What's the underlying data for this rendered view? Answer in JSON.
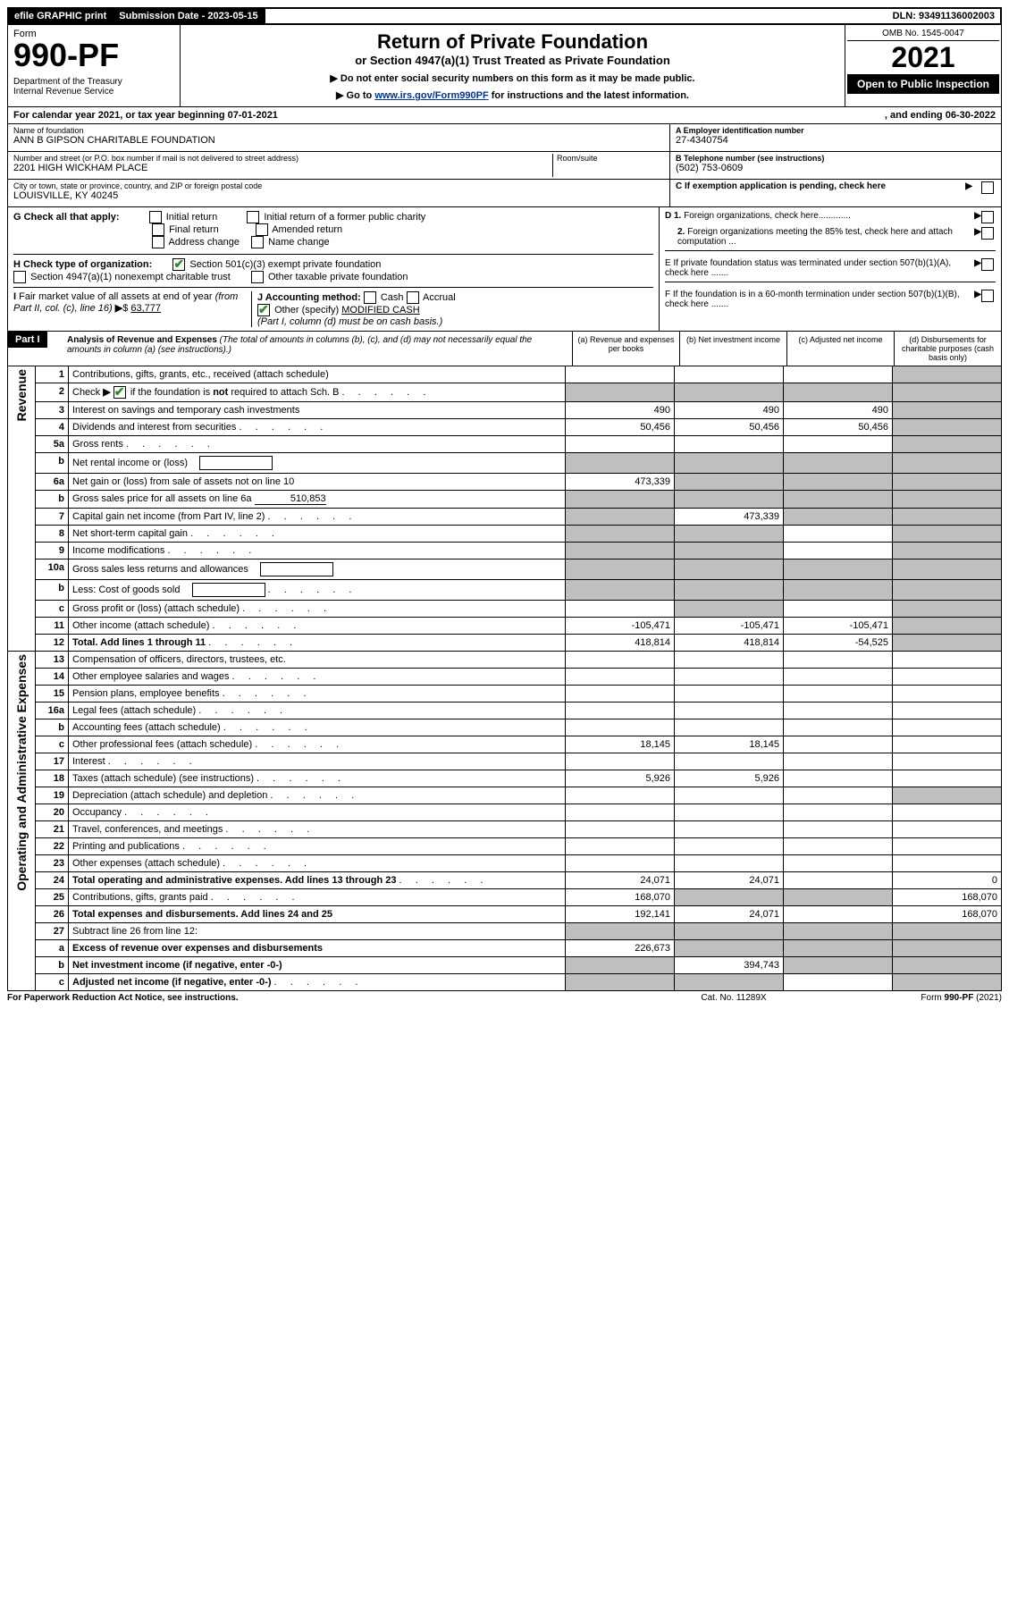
{
  "topbar": {
    "efile": "efile GRAPHIC print",
    "submission_label": "Submission Date - ",
    "submission_date": "2023-05-15",
    "dln_label": "DLN: ",
    "dln": "93491136002003"
  },
  "header": {
    "form_label": "Form",
    "form_no": "990-PF",
    "dept": "Department of the Treasury\nInternal Revenue Service",
    "title": "Return of Private Foundation",
    "subtitle": "or Section 4947(a)(1) Trust Treated as Private Foundation",
    "instr1": "▶ Do not enter social security numbers on this form as it may be made public.",
    "instr2_pre": "▶ Go to ",
    "instr2_link": "www.irs.gov/Form990PF",
    "instr2_post": " for instructions and the latest information.",
    "omb": "OMB No. 1545-0047",
    "year": "2021",
    "inspect": "Open to Public Inspection"
  },
  "calendar": {
    "text": "For calendar year 2021, or tax year beginning ",
    "begin": "07-01-2021",
    "mid": ", and ending ",
    "end": "06-30-2022"
  },
  "info": {
    "name_label": "Name of foundation",
    "name": "ANN B GIPSON CHARITABLE FOUNDATION",
    "addr_label": "Number and street (or P.O. box number if mail is not delivered to street address)",
    "addr": "2201 HIGH WICKHAM PLACE",
    "room_label": "Room/suite",
    "city_label": "City or town, state or province, country, and ZIP or foreign postal code",
    "city": "LOUISVILLE, KY  40245",
    "ein_label": "A Employer identification number",
    "ein": "27-4340754",
    "phone_label": "B Telephone number (see instructions)",
    "phone": "(502) 753-0609",
    "c_label": "C If exemption application is pending, check here",
    "d1": "D 1. Foreign organizations, check here.............",
    "d2": "2. Foreign organizations meeting the 85% test, check here and attach computation ...",
    "e": "E  If private foundation status was terminated under section 507(b)(1)(A), check here .......",
    "f": "F  If the foundation is in a 60-month termination under section 507(b)(1)(B), check here ......."
  },
  "g": {
    "label": "G Check all that apply:",
    "opts": [
      "Initial return",
      "Final return",
      "Address change",
      "Initial return of a former public charity",
      "Amended return",
      "Name change"
    ]
  },
  "h": {
    "label": "H Check type of organization:",
    "opt1": "Section 501(c)(3) exempt private foundation",
    "opt2": "Section 4947(a)(1) nonexempt charitable trust",
    "opt3": "Other taxable private foundation"
  },
  "i": {
    "label": "I Fair market value of all assets at end of year (from Part II, col. (c), line 16) ▶$",
    "value": "63,777"
  },
  "j": {
    "label": "J Accounting method:",
    "cash": "Cash",
    "accrual": "Accrual",
    "other": "Other (specify)",
    "other_val": "MODIFIED CASH",
    "note": "(Part I, column (d) must be on cash basis.)"
  },
  "part1": {
    "label": "Part I",
    "title": "Analysis of Revenue and Expenses",
    "sub": "(The total of amounts in columns (b), (c), and (d) may not necessarily equal the amounts in column (a) (see instructions).)",
    "cols": {
      "a": "(a) Revenue and expenses per books",
      "b": "(b) Net investment income",
      "c": "(c) Adjusted net income",
      "d": "(d) Disbursements for charitable purposes (cash basis only)"
    }
  },
  "sides": {
    "revenue": "Revenue",
    "expenses": "Operating and Administrative Expenses"
  },
  "rows": [
    {
      "n": "1",
      "desc": "Contributions, gifts, grants, etc., received (attach schedule)",
      "a": "",
      "b": "",
      "c": "",
      "d": "",
      "greyD": true
    },
    {
      "n": "2",
      "desc": "Check ▶ ☑ if the foundation is not required to attach Sch. B",
      "dots": true,
      "a": "",
      "b": "",
      "c": "",
      "d": "",
      "greyA": true,
      "greyB": true,
      "greyC": true,
      "greyD": true,
      "checked": true,
      "bold_not": true
    },
    {
      "n": "3",
      "desc": "Interest on savings and temporary cash investments",
      "a": "490",
      "b": "490",
      "c": "490",
      "d": "",
      "greyD": true
    },
    {
      "n": "4",
      "desc": "Dividends and interest from securities",
      "dots": true,
      "a": "50,456",
      "b": "50,456",
      "c": "50,456",
      "d": "",
      "greyD": true
    },
    {
      "n": "5a",
      "desc": "Gross rents",
      "dots": true,
      "a": "",
      "b": "",
      "c": "",
      "d": "",
      "greyD": true
    },
    {
      "n": "b",
      "desc": "Net rental income or (loss)",
      "inline_box": true,
      "a": "",
      "b": "",
      "c": "",
      "d": "",
      "greyA": true,
      "greyB": true,
      "greyC": true,
      "greyD": true
    },
    {
      "n": "6a",
      "desc": "Net gain or (loss) from sale of assets not on line 10",
      "a": "473,339",
      "b": "",
      "c": "",
      "d": "",
      "greyB": true,
      "greyC": true,
      "greyD": true
    },
    {
      "n": "b",
      "desc": "Gross sales price for all assets on line 6a",
      "inline_val": "510,853",
      "a": "",
      "b": "",
      "c": "",
      "d": "",
      "greyA": true,
      "greyB": true,
      "greyC": true,
      "greyD": true
    },
    {
      "n": "7",
      "desc": "Capital gain net income (from Part IV, line 2)",
      "dots": true,
      "a": "",
      "b": "473,339",
      "c": "",
      "d": "",
      "greyA": true,
      "greyC": true,
      "greyD": true
    },
    {
      "n": "8",
      "desc": "Net short-term capital gain",
      "dots": true,
      "a": "",
      "b": "",
      "c": "",
      "d": "",
      "greyA": true,
      "greyB": true,
      "greyD": true
    },
    {
      "n": "9",
      "desc": "Income modifications",
      "dots": true,
      "a": "",
      "b": "",
      "c": "",
      "d": "",
      "greyA": true,
      "greyB": true,
      "greyD": true
    },
    {
      "n": "10a",
      "desc": "Gross sales less returns and allowances",
      "inline_box": true,
      "a": "",
      "b": "",
      "c": "",
      "d": "",
      "greyA": true,
      "greyB": true,
      "greyC": true,
      "greyD": true
    },
    {
      "n": "b",
      "desc": "Less: Cost of goods sold",
      "dots": true,
      "inline_box": true,
      "a": "",
      "b": "",
      "c": "",
      "d": "",
      "greyA": true,
      "greyB": true,
      "greyC": true,
      "greyD": true
    },
    {
      "n": "c",
      "desc": "Gross profit or (loss) (attach schedule)",
      "dots": true,
      "a": "",
      "b": "",
      "c": "",
      "d": "",
      "greyB": true,
      "greyD": true
    },
    {
      "n": "11",
      "desc": "Other income (attach schedule)",
      "dots": true,
      "a": "-105,471",
      "b": "-105,471",
      "c": "-105,471",
      "d": "",
      "greyD": true
    },
    {
      "n": "12",
      "desc": "Total. Add lines 1 through 11",
      "dots": true,
      "bold": true,
      "a": "418,814",
      "b": "418,814",
      "c": "-54,525",
      "d": "",
      "greyD": true
    },
    {
      "n": "13",
      "desc": "Compensation of officers, directors, trustees, etc.",
      "a": "",
      "b": "",
      "c": "",
      "d": ""
    },
    {
      "n": "14",
      "desc": "Other employee salaries and wages",
      "dots": true,
      "a": "",
      "b": "",
      "c": "",
      "d": ""
    },
    {
      "n": "15",
      "desc": "Pension plans, employee benefits",
      "dots": true,
      "a": "",
      "b": "",
      "c": "",
      "d": ""
    },
    {
      "n": "16a",
      "desc": "Legal fees (attach schedule)",
      "dots": true,
      "a": "",
      "b": "",
      "c": "",
      "d": ""
    },
    {
      "n": "b",
      "desc": "Accounting fees (attach schedule)",
      "dots": true,
      "a": "",
      "b": "",
      "c": "",
      "d": ""
    },
    {
      "n": "c",
      "desc": "Other professional fees (attach schedule)",
      "dots": true,
      "a": "18,145",
      "b": "18,145",
      "c": "",
      "d": ""
    },
    {
      "n": "17",
      "desc": "Interest",
      "dots": true,
      "a": "",
      "b": "",
      "c": "",
      "d": ""
    },
    {
      "n": "18",
      "desc": "Taxes (attach schedule) (see instructions)",
      "dots": true,
      "a": "5,926",
      "b": "5,926",
      "c": "",
      "d": ""
    },
    {
      "n": "19",
      "desc": "Depreciation (attach schedule) and depletion",
      "dots": true,
      "a": "",
      "b": "",
      "c": "",
      "d": "",
      "greyD": true
    },
    {
      "n": "20",
      "desc": "Occupancy",
      "dots": true,
      "a": "",
      "b": "",
      "c": "",
      "d": ""
    },
    {
      "n": "21",
      "desc": "Travel, conferences, and meetings",
      "dots": true,
      "a": "",
      "b": "",
      "c": "",
      "d": ""
    },
    {
      "n": "22",
      "desc": "Printing and publications",
      "dots": true,
      "a": "",
      "b": "",
      "c": "",
      "d": ""
    },
    {
      "n": "23",
      "desc": "Other expenses (attach schedule)",
      "dots": true,
      "a": "",
      "b": "",
      "c": "",
      "d": ""
    },
    {
      "n": "24",
      "desc": "Total operating and administrative expenses. Add lines 13 through 23",
      "dots": true,
      "bold": true,
      "a": "24,071",
      "b": "24,071",
      "c": "",
      "d": "0"
    },
    {
      "n": "25",
      "desc": "Contributions, gifts, grants paid",
      "dots": true,
      "a": "168,070",
      "b": "",
      "c": "",
      "d": "168,070",
      "greyB": true,
      "greyC": true
    },
    {
      "n": "26",
      "desc": "Total expenses and disbursements. Add lines 24 and 25",
      "bold": true,
      "a": "192,141",
      "b": "24,071",
      "c": "",
      "d": "168,070"
    },
    {
      "n": "27",
      "desc": "Subtract line 26 from line 12:",
      "a": "",
      "b": "",
      "c": "",
      "d": "",
      "greyA": true,
      "greyB": true,
      "greyC": true,
      "greyD": true
    },
    {
      "n": "a",
      "desc": "Excess of revenue over expenses and disbursements",
      "bold": true,
      "a": "226,673",
      "b": "",
      "c": "",
      "d": "",
      "greyB": true,
      "greyC": true,
      "greyD": true
    },
    {
      "n": "b",
      "desc": "Net investment income (if negative, enter -0-)",
      "bold": true,
      "a": "",
      "b": "394,743",
      "c": "",
      "d": "",
      "greyA": true,
      "greyC": true,
      "greyD": true
    },
    {
      "n": "c",
      "desc": "Adjusted net income (if negative, enter -0-)",
      "dots": true,
      "bold": true,
      "a": "",
      "b": "",
      "c": "",
      "d": "",
      "greyA": true,
      "greyB": true,
      "greyD": true
    }
  ],
  "footer": {
    "left": "For Paperwork Reduction Act Notice, see instructions.",
    "mid": "Cat. No. 11289X",
    "right": "Form 990-PF (2021)"
  }
}
